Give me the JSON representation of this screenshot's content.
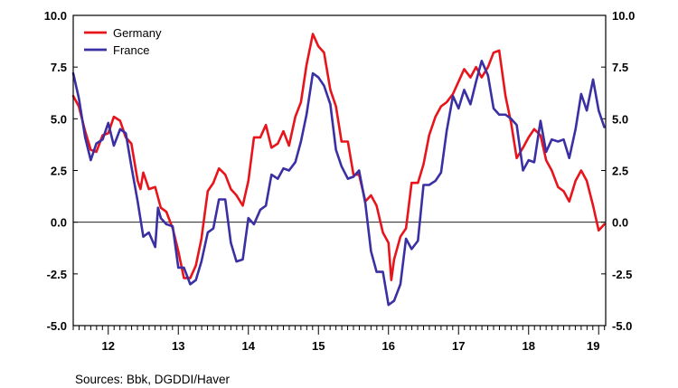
{
  "source_note": "Sources:  Bbk, DGDDI/Haver",
  "colors": {
    "germany": "#e8141b",
    "france": "#3a2fa3",
    "zero_line": "#000000",
    "frame": "#000000"
  },
  "chart_data": {
    "type": "line",
    "title": "",
    "xlabel": "",
    "ylabel": "",
    "x_start": 2011.5,
    "x_end": 2019.1,
    "ylim": [
      -5.0,
      10.0
    ],
    "y_ticks": [
      "10.0",
      "7.5",
      "5.0",
      "2.5",
      "0.0",
      "-2.5",
      "-5.0"
    ],
    "y_tick_values": [
      10.0,
      7.5,
      5.0,
      2.5,
      0.0,
      -2.5,
      -5.0
    ],
    "x_tick_labels": [
      "12",
      "13",
      "14",
      "15",
      "16",
      "17",
      "18",
      "19"
    ],
    "x_tick_values": [
      2012.0,
      2013.0,
      2014.0,
      2015.0,
      2016.0,
      2017.0,
      2018.0,
      2019.0
    ],
    "legend_position": "top-left",
    "grid": false,
    "zero_line": true,
    "series": [
      {
        "name": "Germany",
        "color": "#e8141b",
        "points": [
          [
            2011.5,
            6.1
          ],
          [
            2011.58,
            5.6
          ],
          [
            2011.67,
            4.4
          ],
          [
            2011.75,
            3.5
          ],
          [
            2011.83,
            3.4
          ],
          [
            2011.92,
            4.2
          ],
          [
            2012.0,
            4.3
          ],
          [
            2012.08,
            5.1
          ],
          [
            2012.17,
            4.9
          ],
          [
            2012.25,
            4.1
          ],
          [
            2012.33,
            3.8
          ],
          [
            2012.42,
            2.0
          ],
          [
            2012.46,
            1.6
          ],
          [
            2012.5,
            2.4
          ],
          [
            2012.58,
            1.6
          ],
          [
            2012.67,
            1.7
          ],
          [
            2012.75,
            0.7
          ],
          [
            2012.83,
            0.5
          ],
          [
            2012.92,
            -0.3
          ],
          [
            2013.0,
            -1.4
          ],
          [
            2013.08,
            -2.7
          ],
          [
            2013.17,
            -2.7
          ],
          [
            2013.25,
            -2.1
          ],
          [
            2013.33,
            -0.8
          ],
          [
            2013.42,
            1.5
          ],
          [
            2013.5,
            1.9
          ],
          [
            2013.58,
            2.6
          ],
          [
            2013.67,
            2.3
          ],
          [
            2013.75,
            1.6
          ],
          [
            2013.83,
            1.3
          ],
          [
            2013.92,
            0.8
          ],
          [
            2014.0,
            2.0
          ],
          [
            2014.08,
            4.1
          ],
          [
            2014.17,
            4.1
          ],
          [
            2014.25,
            4.7
          ],
          [
            2014.33,
            3.6
          ],
          [
            2014.42,
            3.8
          ],
          [
            2014.5,
            4.4
          ],
          [
            2014.58,
            3.7
          ],
          [
            2014.67,
            5.1
          ],
          [
            2014.75,
            5.8
          ],
          [
            2014.83,
            7.6
          ],
          [
            2014.92,
            9.1
          ],
          [
            2015.0,
            8.5
          ],
          [
            2015.08,
            8.2
          ],
          [
            2015.17,
            6.4
          ],
          [
            2015.25,
            5.6
          ],
          [
            2015.33,
            3.9
          ],
          [
            2015.42,
            3.9
          ],
          [
            2015.5,
            2.3
          ],
          [
            2015.58,
            2.3
          ],
          [
            2015.67,
            1.0
          ],
          [
            2015.75,
            1.3
          ],
          [
            2015.83,
            0.8
          ],
          [
            2015.92,
            -0.5
          ],
          [
            2016.0,
            -1.0
          ],
          [
            2016.04,
            -2.8
          ],
          [
            2016.08,
            -1.8
          ],
          [
            2016.17,
            -0.7
          ],
          [
            2016.25,
            -0.3
          ],
          [
            2016.33,
            1.9
          ],
          [
            2016.42,
            1.9
          ],
          [
            2016.5,
            2.8
          ],
          [
            2016.58,
            4.2
          ],
          [
            2016.67,
            5.1
          ],
          [
            2016.75,
            5.6
          ],
          [
            2016.83,
            5.8
          ],
          [
            2016.92,
            6.2
          ],
          [
            2017.0,
            6.8
          ],
          [
            2017.08,
            7.4
          ],
          [
            2017.17,
            7.0
          ],
          [
            2017.25,
            7.5
          ],
          [
            2017.33,
            7.0
          ],
          [
            2017.42,
            7.5
          ],
          [
            2017.5,
            8.2
          ],
          [
            2017.58,
            8.3
          ],
          [
            2017.67,
            6.1
          ],
          [
            2017.75,
            4.8
          ],
          [
            2017.83,
            3.1
          ],
          [
            2017.92,
            3.6
          ],
          [
            2018.0,
            4.1
          ],
          [
            2018.08,
            4.5
          ],
          [
            2018.17,
            4.2
          ],
          [
            2018.25,
            3.0
          ],
          [
            2018.33,
            2.5
          ],
          [
            2018.42,
            1.7
          ],
          [
            2018.5,
            1.5
          ],
          [
            2018.58,
            1.0
          ],
          [
            2018.67,
            2.0
          ],
          [
            2018.75,
            2.5
          ],
          [
            2018.83,
            2.0
          ],
          [
            2018.92,
            0.8
          ],
          [
            2019.0,
            -0.4
          ],
          [
            2019.08,
            -0.1
          ]
        ]
      },
      {
        "name": "France",
        "color": "#3a2fa3",
        "points": [
          [
            2011.5,
            7.2
          ],
          [
            2011.58,
            6.0
          ],
          [
            2011.67,
            4.1
          ],
          [
            2011.75,
            3.0
          ],
          [
            2011.83,
            3.8
          ],
          [
            2011.92,
            4.0
          ],
          [
            2012.0,
            4.8
          ],
          [
            2012.08,
            3.7
          ],
          [
            2012.17,
            4.5
          ],
          [
            2012.25,
            4.3
          ],
          [
            2012.33,
            2.7
          ],
          [
            2012.42,
            1.0
          ],
          [
            2012.5,
            -0.7
          ],
          [
            2012.58,
            -0.5
          ],
          [
            2012.67,
            -1.2
          ],
          [
            2012.71,
            0.7
          ],
          [
            2012.75,
            0.2
          ],
          [
            2012.83,
            -0.1
          ],
          [
            2012.92,
            -0.2
          ],
          [
            2013.0,
            -2.2
          ],
          [
            2013.08,
            -2.2
          ],
          [
            2013.17,
            -3.0
          ],
          [
            2013.25,
            -2.8
          ],
          [
            2013.33,
            -1.9
          ],
          [
            2013.42,
            -0.5
          ],
          [
            2013.5,
            -0.3
          ],
          [
            2013.58,
            1.1
          ],
          [
            2013.67,
            1.1
          ],
          [
            2013.75,
            -1.0
          ],
          [
            2013.83,
            -1.9
          ],
          [
            2013.92,
            -1.8
          ],
          [
            2014.0,
            0.2
          ],
          [
            2014.08,
            -0.1
          ],
          [
            2014.17,
            0.6
          ],
          [
            2014.25,
            0.8
          ],
          [
            2014.33,
            2.3
          ],
          [
            2014.42,
            2.1
          ],
          [
            2014.5,
            2.6
          ],
          [
            2014.58,
            2.5
          ],
          [
            2014.67,
            2.9
          ],
          [
            2014.75,
            3.9
          ],
          [
            2014.83,
            5.2
          ],
          [
            2014.92,
            7.2
          ],
          [
            2015.0,
            7.0
          ],
          [
            2015.08,
            6.6
          ],
          [
            2015.17,
            5.7
          ],
          [
            2015.25,
            3.5
          ],
          [
            2015.33,
            2.7
          ],
          [
            2015.42,
            2.1
          ],
          [
            2015.5,
            2.2
          ],
          [
            2015.58,
            2.5
          ],
          [
            2015.67,
            0.9
          ],
          [
            2015.75,
            -1.4
          ],
          [
            2015.83,
            -2.4
          ],
          [
            2015.92,
            -2.4
          ],
          [
            2016.0,
            -4.0
          ],
          [
            2016.08,
            -3.8
          ],
          [
            2016.17,
            -3.0
          ],
          [
            2016.25,
            -0.8
          ],
          [
            2016.33,
            -1.3
          ],
          [
            2016.42,
            -0.9
          ],
          [
            2016.5,
            1.8
          ],
          [
            2016.58,
            1.8
          ],
          [
            2016.67,
            2.0
          ],
          [
            2016.75,
            2.4
          ],
          [
            2016.83,
            4.4
          ],
          [
            2016.92,
            6.1
          ],
          [
            2017.0,
            5.5
          ],
          [
            2017.08,
            6.4
          ],
          [
            2017.17,
            5.7
          ],
          [
            2017.25,
            6.8
          ],
          [
            2017.33,
            7.8
          ],
          [
            2017.42,
            7.1
          ],
          [
            2017.5,
            5.5
          ],
          [
            2017.58,
            5.2
          ],
          [
            2017.67,
            5.2
          ],
          [
            2017.75,
            5.0
          ],
          [
            2017.83,
            4.7
          ],
          [
            2017.92,
            2.5
          ],
          [
            2018.0,
            3.0
          ],
          [
            2018.08,
            2.9
          ],
          [
            2018.17,
            4.9
          ],
          [
            2018.25,
            3.4
          ],
          [
            2018.33,
            4.0
          ],
          [
            2018.42,
            3.9
          ],
          [
            2018.5,
            4.0
          ],
          [
            2018.58,
            3.1
          ],
          [
            2018.67,
            4.5
          ],
          [
            2018.75,
            6.2
          ],
          [
            2018.83,
            5.4
          ],
          [
            2018.92,
            6.9
          ],
          [
            2019.0,
            5.4
          ],
          [
            2019.08,
            4.6
          ]
        ]
      }
    ]
  }
}
